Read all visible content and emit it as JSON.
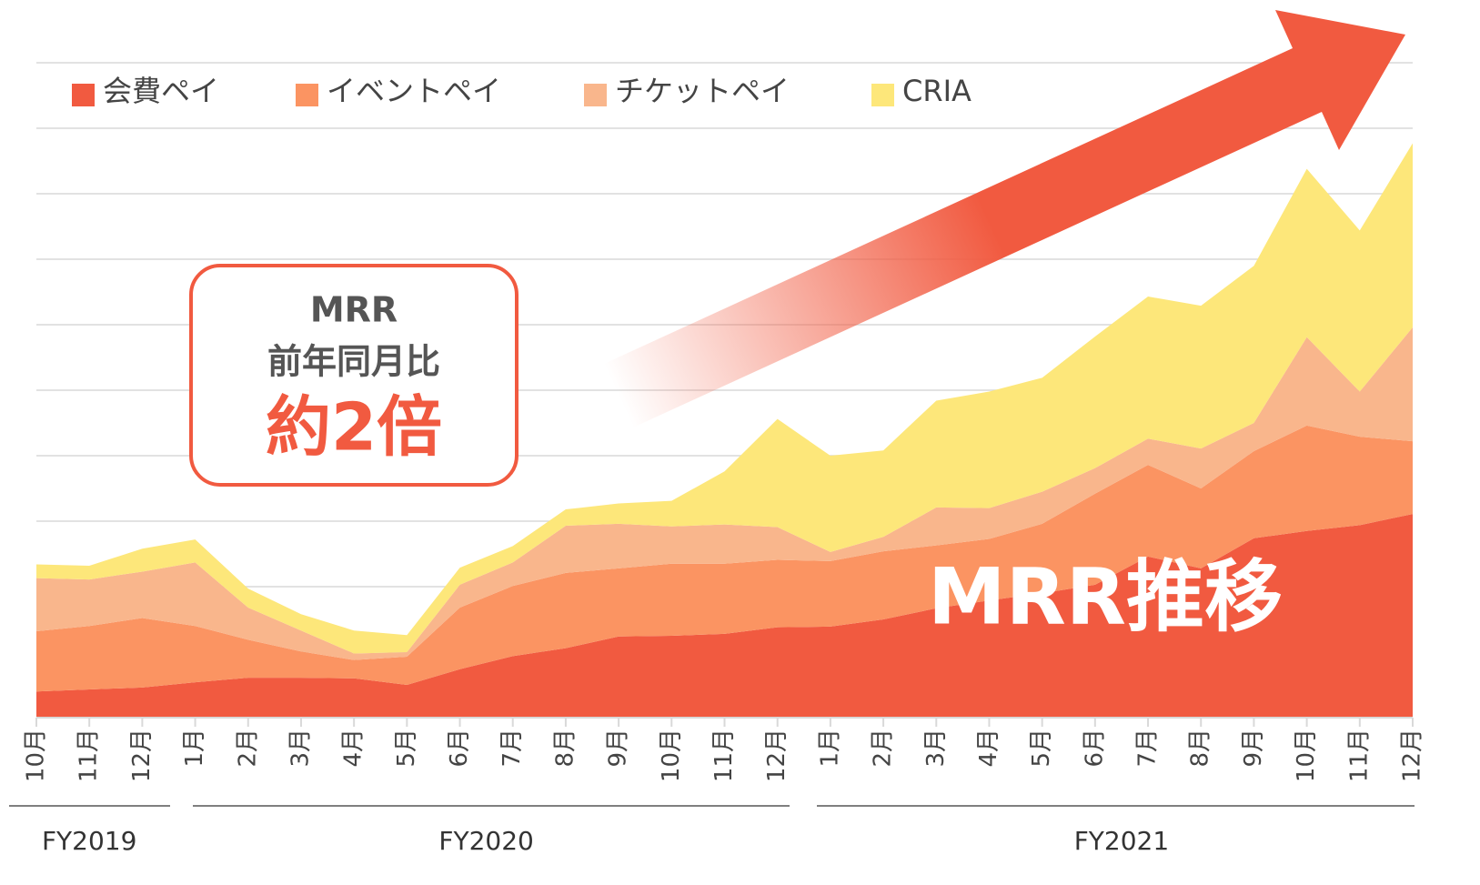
{
  "chart_data": {
    "type": "stacked_area",
    "categories": [
      "10月",
      "11月",
      "12月",
      "1月",
      "2月",
      "3月",
      "4月",
      "5月",
      "6月",
      "7月",
      "8月",
      "9月",
      "10月",
      "11月",
      "12月",
      "1月",
      "2月",
      "3月",
      "4月",
      "5月",
      "6月",
      "7月",
      "8月",
      "9月",
      "10月",
      "11月",
      "12月"
    ],
    "fiscal_years": [
      "FY2019",
      "FY2020",
      "FY2021"
    ],
    "series": [
      {
        "name": "会費ペイ",
        "color": "#f15a40",
        "values": [
          0.4,
          0.43,
          0.46,
          0.54,
          0.61,
          0.61,
          0.6,
          0.5,
          0.74,
          0.94,
          1.06,
          1.24,
          1.25,
          1.28,
          1.38,
          1.39,
          1.5,
          1.67,
          1.79,
          1.9,
          2.03,
          2.46,
          2.28,
          2.74,
          2.85,
          2.94,
          3.11
        ]
      },
      {
        "name": "イベントペイ",
        "color": "#fb9462",
        "values": [
          0.92,
          0.97,
          1.06,
          0.86,
          0.58,
          0.4,
          0.28,
          0.43,
          0.94,
          1.07,
          1.15,
          1.04,
          1.1,
          1.07,
          1.03,
          1.0,
          1.04,
          0.96,
          0.94,
          1.06,
          1.39,
          1.4,
          1.22,
          1.33,
          1.61,
          1.35,
          1.11
        ]
      },
      {
        "name": "チケットペイ",
        "color": "#f9b68c",
        "values": [
          0.81,
          0.71,
          0.71,
          0.97,
          0.49,
          0.32,
          0.1,
          0.07,
          0.35,
          0.36,
          0.72,
          0.68,
          0.57,
          0.6,
          0.5,
          0.14,
          0.22,
          0.58,
          0.47,
          0.49,
          0.39,
          0.4,
          0.61,
          0.43,
          1.35,
          0.69,
          1.74
        ]
      },
      {
        "name": "CRIA",
        "color": "#fde77a",
        "values": [
          0.21,
          0.21,
          0.35,
          0.35,
          0.29,
          0.25,
          0.35,
          0.26,
          0.26,
          0.25,
          0.25,
          0.31,
          0.39,
          0.81,
          1.65,
          1.47,
          1.32,
          1.63,
          1.78,
          1.74,
          2.01,
          2.17,
          2.18,
          2.4,
          2.57,
          2.46,
          2.81
        ]
      }
    ],
    "ylim": [
      0,
      10
    ],
    "yticks": [
      0,
      1,
      2,
      3,
      4,
      5,
      6,
      7,
      8,
      9,
      10
    ],
    "grid": true,
    "callout": {
      "line1": "MRR",
      "line2": "前年同月比",
      "highlight": "約2倍"
    },
    "annotation": "MRR推移"
  }
}
